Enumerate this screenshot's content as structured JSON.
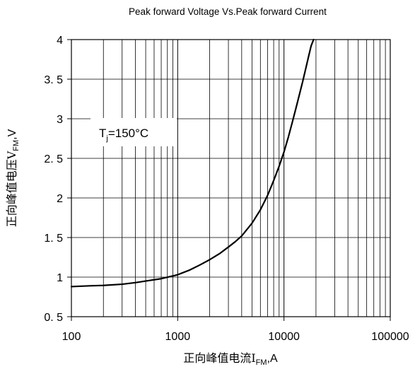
{
  "chart_data": {
    "type": "line",
    "title": "Peak forward Voltage Vs.Peak forward Current",
    "x_scale": "log",
    "xlim": [
      100,
      100000
    ],
    "ylim": [
      0.5,
      4
    ],
    "x_ticks": [
      "100",
      "1000",
      "10000",
      "100000"
    ],
    "y_ticks": [
      "0. 5",
      "1",
      "1. 5",
      "2",
      "2. 5",
      "3",
      "3. 5",
      "4"
    ],
    "xlabel": {
      "main": "正向峰值电流I",
      "sub": "FM",
      "unit": ",A"
    },
    "ylabel": {
      "main": "正向峰值电压V",
      "sub": "FM",
      "unit": ",V"
    },
    "annotation": {
      "main": "T",
      "sub": "j",
      "rest": "=150°C"
    },
    "grid": true,
    "series": [
      {
        "x": [
          100,
          150,
          200,
          300,
          400,
          500,
          700,
          1000,
          1300,
          1600,
          2000,
          2500,
          3000,
          3500,
          4000,
          5000,
          6000,
          7000,
          8000,
          9000,
          10000,
          11000,
          12000,
          13000,
          14000,
          15000,
          16000,
          17000,
          18000,
          19000
        ],
        "y": [
          0.88,
          0.89,
          0.895,
          0.91,
          0.93,
          0.95,
          0.98,
          1.03,
          1.09,
          1.15,
          1.22,
          1.3,
          1.38,
          1.45,
          1.52,
          1.68,
          1.85,
          2.03,
          2.22,
          2.4,
          2.58,
          2.77,
          2.96,
          3.14,
          3.31,
          3.47,
          3.63,
          3.78,
          3.92,
          4.0
        ]
      }
    ]
  }
}
